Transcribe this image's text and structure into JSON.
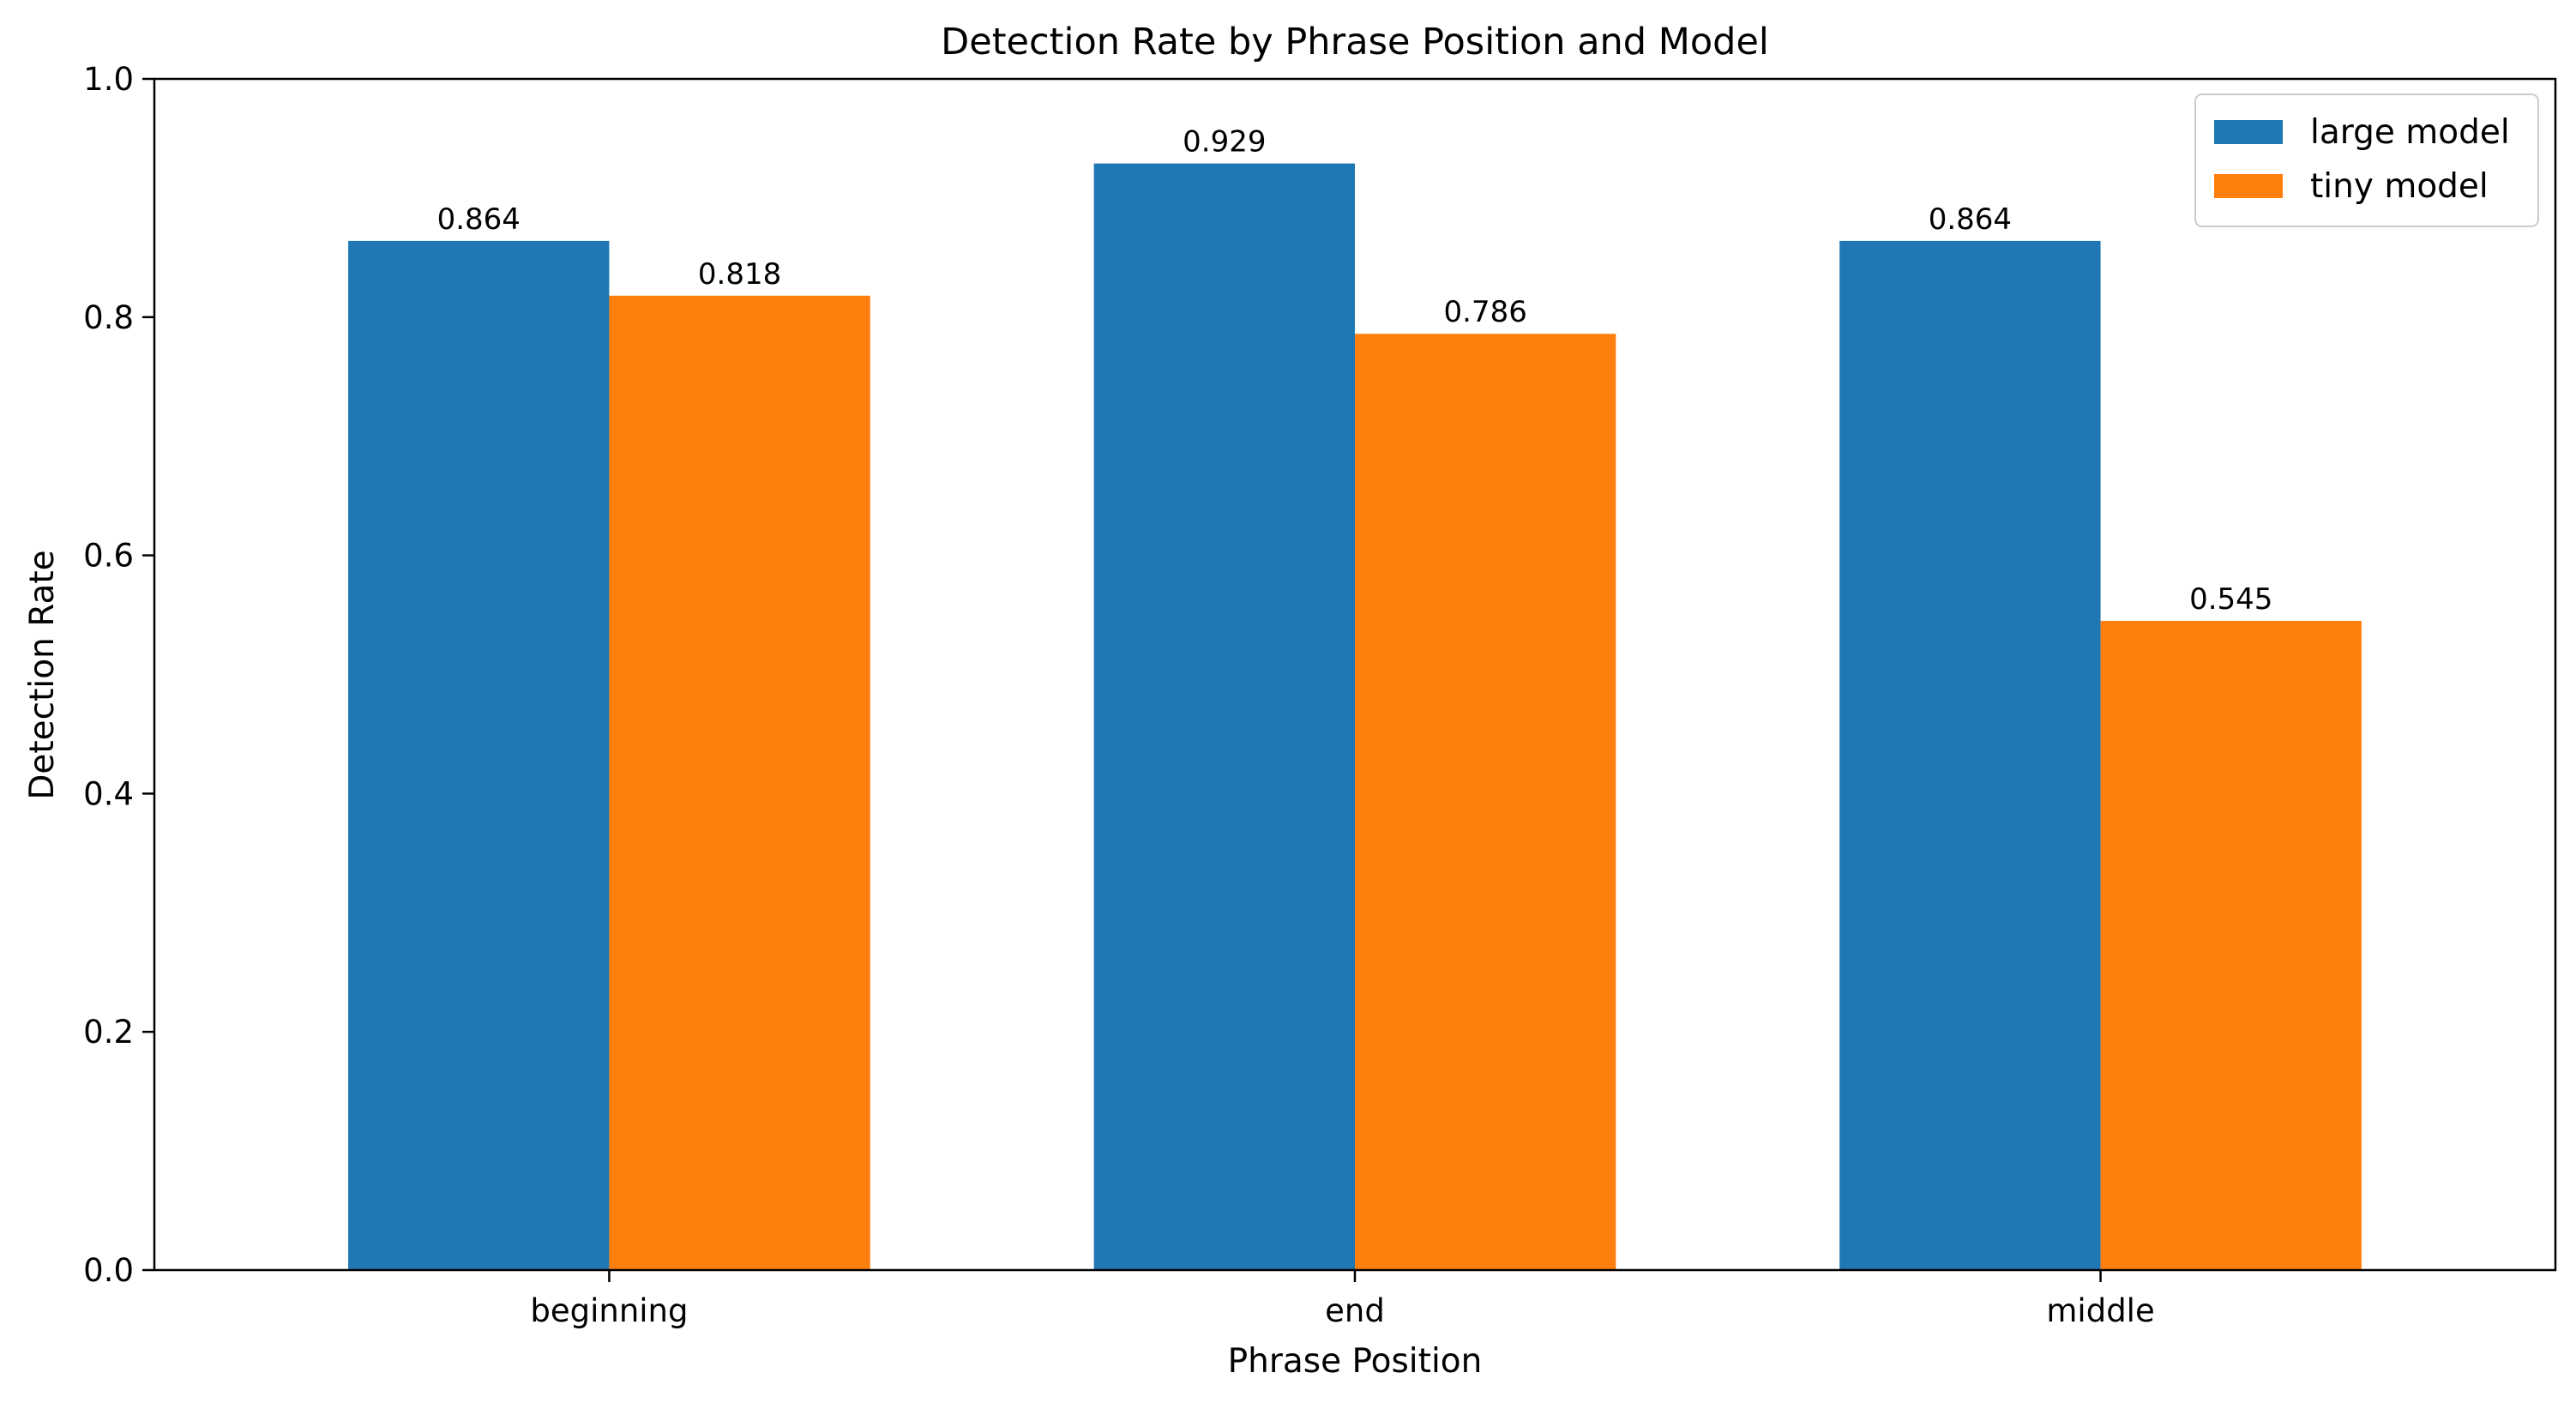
{
  "chart_data": {
    "type": "bar",
    "title": "Detection Rate by Phrase Position and Model",
    "xlabel": "Phrase Position",
    "ylabel": "Detection Rate",
    "categories": [
      "beginning",
      "end",
      "middle"
    ],
    "ylim": [
      0,
      1.0
    ],
    "yticks": [
      "0.0",
      "0.2",
      "0.4",
      "0.6",
      "0.8",
      "1.0"
    ],
    "grid": false,
    "legend_position": "top-right",
    "series": [
      {
        "name": "large model",
        "color": "#1f77b4",
        "values": [
          0.864,
          0.929,
          0.864
        ],
        "labels": [
          "0.864",
          "0.929",
          "0.864"
        ]
      },
      {
        "name": "tiny model",
        "color": "#ff7f0e",
        "values": [
          0.818,
          0.786,
          0.545
        ],
        "labels": [
          "0.818",
          "0.786",
          "0.545"
        ]
      }
    ]
  }
}
